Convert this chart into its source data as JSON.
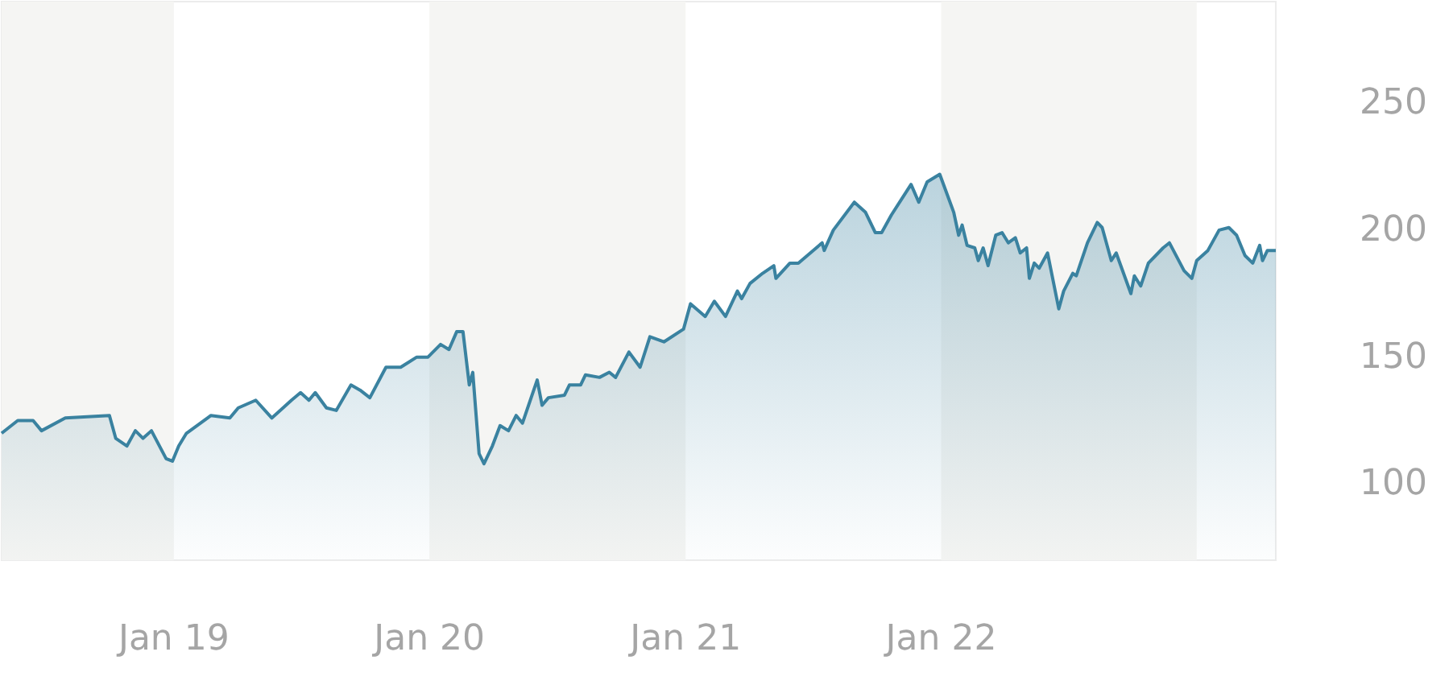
{
  "chart_data": {
    "type": "area",
    "x": [
      "2018-04-30",
      "2018-05-23",
      "2018-06-14",
      "2018-06-26",
      "2018-07-30",
      "2018-10-01",
      "2018-10-10",
      "2018-10-26",
      "2018-11-07",
      "2018-11-18",
      "2018-11-30",
      "2018-12-21",
      "2018-12-30",
      "2019-01-08",
      "2019-01-19",
      "2019-02-23",
      "2019-03-22",
      "2019-04-03",
      "2019-04-28",
      "2019-05-21",
      "2019-06-18",
      "2019-07-01",
      "2019-07-13",
      "2019-07-22",
      "2019-08-07",
      "2019-08-21",
      "2019-09-11",
      "2019-09-24",
      "2019-10-08",
      "2019-10-31",
      "2019-11-21",
      "2019-12-14",
      "2019-12-30",
      "2020-01-17",
      "2020-01-29",
      "2020-02-09",
      "2020-02-18",
      "2020-02-27",
      "2020-03-03",
      "2020-03-12",
      "2020-03-19",
      "2020-03-31",
      "2020-04-11",
      "2020-04-23",
      "2020-05-04",
      "2020-05-13",
      "2020-06-03",
      "2020-06-10",
      "2020-06-19",
      "2020-07-12",
      "2020-07-19",
      "2020-08-04",
      "2020-08-11",
      "2020-08-31",
      "2020-09-14",
      "2020-09-23",
      "2020-10-12",
      "2020-10-28",
      "2020-11-11",
      "2020-12-01",
      "2020-12-29",
      "2021-01-08",
      "2021-01-29",
      "2021-02-11",
      "2021-02-27",
      "2021-03-16",
      "2021-03-22",
      "2021-04-03",
      "2021-04-21",
      "2021-05-07",
      "2021-05-10",
      "2021-05-30",
      "2021-06-11",
      "2021-07-15",
      "2021-07-18",
      "2021-07-31",
      "2021-08-30",
      "2021-09-15",
      "2021-09-29",
      "2021-10-08",
      "2021-10-22",
      "2021-11-19",
      "2021-11-30",
      "2021-12-12",
      "2021-12-30",
      "2022-01-19",
      "2022-01-26",
      "2022-01-31",
      "2022-02-07",
      "2022-02-18",
      "2022-02-23",
      "2022-03-02",
      "2022-03-09",
      "2022-03-20",
      "2022-03-29",
      "2022-04-07",
      "2022-04-17",
      "2022-04-24",
      "2022-05-03",
      "2022-05-07",
      "2022-05-14",
      "2022-05-21",
      "2022-06-02",
      "2022-06-18",
      "2022-06-25",
      "2022-07-08",
      "2022-07-13",
      "2022-07-29",
      "2022-08-12",
      "2022-08-19",
      "2022-09-01",
      "2022-09-08",
      "2022-09-29",
      "2022-10-04",
      "2022-10-13",
      "2022-10-24",
      "2022-11-14",
      "2022-11-23",
      "2022-12-14",
      "2022-12-25",
      "2023-01-01",
      "2023-01-17",
      "2023-02-02",
      "2023-02-16",
      "2023-02-27",
      "2023-03-11",
      "2023-03-22",
      "2023-04-01",
      "2023-04-05",
      "2023-04-12",
      "2023-04-24"
    ],
    "series": [
      {
        "color": "#3a82a0",
        "values": [
          120,
          125,
          125,
          121,
          126,
          127,
          118,
          115,
          121,
          118,
          121,
          110,
          109,
          115,
          120,
          127,
          126,
          130,
          133,
          126,
          133,
          136,
          133,
          136,
          130,
          129,
          139,
          137,
          134,
          146,
          146,
          150,
          150,
          155,
          153,
          160,
          160,
          139,
          144,
          112,
          108,
          115,
          123,
          121,
          127,
          124,
          141,
          131,
          134,
          135,
          139,
          139,
          143,
          142,
          144,
          142,
          152,
          146,
          158,
          156,
          161,
          171,
          166,
          172,
          166,
          176,
          173,
          179,
          183,
          186,
          181,
          187,
          187,
          195,
          192,
          200,
          211,
          207,
          199,
          199,
          206,
          218,
          211,
          219,
          222,
          207,
          198,
          202,
          194,
          193,
          188,
          193,
          186,
          198,
          199,
          195,
          197,
          191,
          193,
          181,
          187,
          185,
          191,
          169,
          176,
          183,
          182,
          195,
          203,
          201,
          188,
          191,
          175,
          182,
          178,
          187,
          193,
          195,
          184,
          181,
          188,
          192,
          200,
          201,
          198,
          190,
          187,
          194,
          188,
          192,
          192
        ]
      }
    ],
    "xlim": [
      "2018-04-30",
      "2023-04-24"
    ],
    "xticks": [
      {
        "value": "2019-01-01",
        "label": "Jan 19"
      },
      {
        "value": "2020-01-01",
        "label": "Jan 20"
      },
      {
        "value": "2021-01-01",
        "label": "Jan 21"
      },
      {
        "value": "2022-01-01",
        "label": "Jan 22"
      }
    ],
    "ylim": [
      70,
      290
    ],
    "yticks": [
      100,
      150,
      200,
      250
    ],
    "bands": [
      {
        "axis": "x",
        "from": "2018-04-30",
        "to": "2019-01-01",
        "color": "#f5f5f3"
      },
      {
        "axis": "x",
        "from": "2020-01-01",
        "to": "2021-01-01",
        "color": "#f5f5f3"
      },
      {
        "axis": "x",
        "from": "2022-01-01",
        "to": "2023-01-01",
        "color": "#f5f5f3"
      }
    ]
  }
}
